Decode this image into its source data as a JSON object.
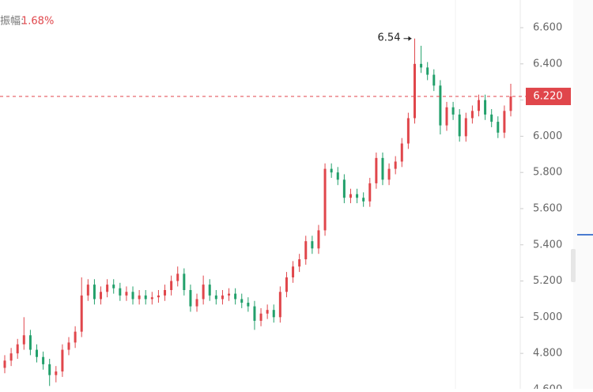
{
  "chart_data": {
    "type": "candlestick",
    "amplitude_label": "振幅:",
    "amplitude": "1.68%",
    "up_color": "#e0464b",
    "down_color": "#22a06b",
    "ylim": [
      4.604,
      6.753
    ],
    "yticks": [
      {
        "value": 4.6,
        "label": "4.600"
      },
      {
        "value": 4.8,
        "label": "4.800"
      },
      {
        "value": 5.0,
        "label": "5.000"
      },
      {
        "value": 5.2,
        "label": "5.200"
      },
      {
        "value": 5.4,
        "label": "5.400"
      },
      {
        "value": 5.6,
        "label": "5.600"
      },
      {
        "value": 5.8,
        "label": "5.800"
      },
      {
        "value": 6.0,
        "label": "6.000"
      },
      {
        "value": 6.2,
        "label": "6.200"
      },
      {
        "value": 6.4,
        "label": "6.400"
      },
      {
        "value": 6.6,
        "label": "6.600"
      }
    ],
    "last_price": {
      "value": 6.22,
      "label": "6.220"
    },
    "max_annotation": 6.54,
    "candles": [
      [
        4.72,
        4.79,
        4.69,
        4.76
      ],
      [
        4.76,
        4.83,
        4.73,
        4.8
      ],
      [
        4.8,
        4.88,
        4.77,
        4.85
      ],
      [
        4.85,
        5.0,
        4.82,
        4.9
      ],
      [
        4.9,
        4.93,
        4.79,
        4.82
      ],
      [
        4.82,
        4.85,
        4.75,
        4.78
      ],
      [
        4.78,
        4.81,
        4.71,
        4.74
      ],
      [
        4.74,
        4.77,
        4.62,
        4.68
      ],
      [
        4.68,
        4.73,
        4.64,
        4.7
      ],
      [
        4.7,
        4.85,
        4.67,
        4.82
      ],
      [
        4.82,
        4.89,
        4.79,
        4.86
      ],
      [
        4.86,
        4.95,
        4.83,
        4.92
      ],
      [
        4.92,
        5.22,
        4.89,
        5.12
      ],
      [
        5.12,
        5.21,
        5.09,
        5.18
      ],
      [
        5.18,
        5.21,
        5.07,
        5.1
      ],
      [
        5.1,
        5.17,
        5.07,
        5.14
      ],
      [
        5.14,
        5.21,
        5.11,
        5.18
      ],
      [
        5.18,
        5.21,
        5.13,
        5.16
      ],
      [
        5.16,
        5.19,
        5.09,
        5.12
      ],
      [
        5.12,
        5.17,
        5.09,
        5.14
      ],
      [
        5.14,
        5.17,
        5.07,
        5.1
      ],
      [
        5.1,
        5.15,
        5.07,
        5.12
      ],
      [
        5.12,
        5.15,
        5.07,
        5.1
      ],
      [
        5.1,
        5.14,
        5.07,
        5.11
      ],
      [
        5.11,
        5.15,
        5.08,
        5.12
      ],
      [
        5.12,
        5.18,
        5.09,
        5.15
      ],
      [
        5.15,
        5.23,
        5.12,
        5.2
      ],
      [
        5.2,
        5.28,
        5.17,
        5.24
      ],
      [
        5.24,
        5.27,
        5.12,
        5.15
      ],
      [
        5.15,
        5.18,
        5.03,
        5.06
      ],
      [
        5.06,
        5.13,
        5.03,
        5.1
      ],
      [
        5.1,
        5.23,
        5.07,
        5.18
      ],
      [
        5.18,
        5.21,
        5.09,
        5.12
      ],
      [
        5.12,
        5.15,
        5.07,
        5.1
      ],
      [
        5.1,
        5.15,
        5.07,
        5.12
      ],
      [
        5.12,
        5.16,
        5.09,
        5.13
      ],
      [
        5.13,
        5.16,
        5.07,
        5.1
      ],
      [
        5.1,
        5.13,
        5.05,
        5.08
      ],
      [
        5.08,
        5.11,
        5.03,
        5.06
      ],
      [
        5.06,
        5.09,
        4.93,
        4.98
      ],
      [
        4.98,
        5.05,
        4.95,
        5.02
      ],
      [
        5.02,
        5.07,
        4.99,
        5.04
      ],
      [
        5.04,
        5.07,
        4.97,
        5.0
      ],
      [
        5.0,
        5.17,
        4.97,
        5.14
      ],
      [
        5.14,
        5.25,
        5.11,
        5.22
      ],
      [
        5.22,
        5.31,
        5.19,
        5.28
      ],
      [
        5.28,
        5.35,
        5.25,
        5.32
      ],
      [
        5.32,
        5.45,
        5.29,
        5.42
      ],
      [
        5.42,
        5.45,
        5.35,
        5.38
      ],
      [
        5.38,
        5.51,
        5.35,
        5.48
      ],
      [
        5.48,
        5.85,
        5.45,
        5.82
      ],
      [
        5.82,
        5.85,
        5.77,
        5.8
      ],
      [
        5.8,
        5.83,
        5.73,
        5.76
      ],
      [
        5.76,
        5.79,
        5.63,
        5.66
      ],
      [
        5.66,
        5.71,
        5.63,
        5.68
      ],
      [
        5.68,
        5.71,
        5.63,
        5.66
      ],
      [
        5.66,
        5.69,
        5.61,
        5.64
      ],
      [
        5.64,
        5.77,
        5.61,
        5.74
      ],
      [
        5.74,
        5.91,
        5.71,
        5.88
      ],
      [
        5.88,
        5.91,
        5.73,
        5.76
      ],
      [
        5.76,
        5.85,
        5.73,
        5.82
      ],
      [
        5.82,
        5.89,
        5.79,
        5.86
      ],
      [
        5.86,
        5.99,
        5.83,
        5.96
      ],
      [
        5.96,
        6.13,
        5.93,
        6.1
      ],
      [
        6.1,
        6.54,
        6.07,
        6.4
      ],
      [
        6.4,
        6.5,
        6.35,
        6.38
      ],
      [
        6.38,
        6.41,
        6.31,
        6.34
      ],
      [
        6.34,
        6.37,
        6.25,
        6.28
      ],
      [
        6.28,
        6.31,
        6.01,
        6.06
      ],
      [
        6.06,
        6.19,
        6.03,
        6.16
      ],
      [
        6.16,
        6.19,
        6.09,
        6.12
      ],
      [
        6.12,
        6.15,
        5.97,
        6.0
      ],
      [
        6.0,
        6.13,
        5.97,
        6.1
      ],
      [
        6.1,
        6.17,
        6.07,
        6.14
      ],
      [
        6.14,
        6.23,
        6.11,
        6.2
      ],
      [
        6.2,
        6.23,
        6.09,
        6.12
      ],
      [
        6.12,
        6.15,
        6.05,
        6.08
      ],
      [
        6.08,
        6.11,
        5.99,
        6.02
      ],
      [
        6.02,
        6.17,
        5.99,
        6.14
      ],
      [
        6.14,
        6.29,
        6.11,
        6.22
      ]
    ]
  }
}
